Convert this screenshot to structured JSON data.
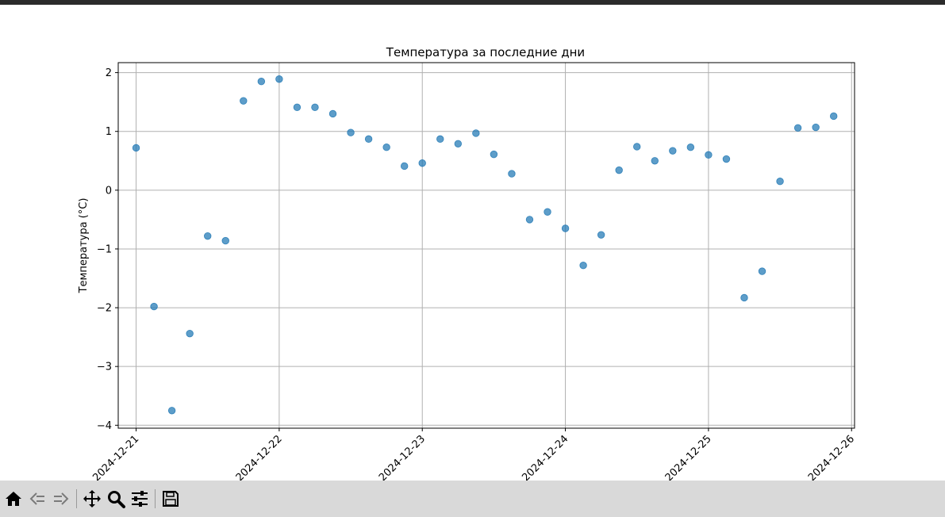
{
  "window": {
    "toolbar_icons": [
      "home-icon",
      "back-icon",
      "forward-icon",
      "pan-icon",
      "zoom-icon",
      "configure-subplots-icon",
      "save-icon"
    ]
  },
  "colors": {
    "marker": "#1f77b4",
    "grid": "#b0b0b0",
    "toolbar_bg": "#d9d9d9",
    "top_strip": "#2b2b2b"
  },
  "chart_data": {
    "type": "scatter",
    "title": "Температура за последние дни",
    "xlabel": "",
    "ylabel": "Температура (°C)",
    "x_type": "datetime",
    "xlim": [
      "2024-12-20T21:00",
      "2024-12-26T00:30"
    ],
    "ylim": [
      -4.05,
      2.17
    ],
    "xticks": [
      "2024-12-21",
      "2024-12-22",
      "2024-12-23",
      "2024-12-24",
      "2024-12-25",
      "2024-12-26"
    ],
    "yticks": [
      2,
      1,
      0,
      -1,
      -2,
      -3,
      -4
    ],
    "ytick_labels": [
      "2",
      "1",
      "0",
      "−1",
      "−2",
      "−3",
      "−4"
    ],
    "grid": true,
    "x": [
      "2024-12-21T00:00",
      "2024-12-21T03:00",
      "2024-12-21T06:00",
      "2024-12-21T09:00",
      "2024-12-21T12:00",
      "2024-12-21T15:00",
      "2024-12-21T18:00",
      "2024-12-21T21:00",
      "2024-12-22T00:00",
      "2024-12-22T03:00",
      "2024-12-22T06:00",
      "2024-12-22T09:00",
      "2024-12-22T12:00",
      "2024-12-22T15:00",
      "2024-12-22T18:00",
      "2024-12-22T21:00",
      "2024-12-23T00:00",
      "2024-12-23T03:00",
      "2024-12-23T06:00",
      "2024-12-23T09:00",
      "2024-12-23T12:00",
      "2024-12-23T15:00",
      "2024-12-23T18:00",
      "2024-12-23T21:00",
      "2024-12-24T00:00",
      "2024-12-24T03:00",
      "2024-12-24T06:00",
      "2024-12-24T09:00",
      "2024-12-24T12:00",
      "2024-12-24T15:00",
      "2024-12-24T18:00",
      "2024-12-24T21:00",
      "2024-12-25T00:00",
      "2024-12-25T03:00",
      "2024-12-25T06:00",
      "2024-12-25T09:00",
      "2024-12-25T12:00",
      "2024-12-25T15:00",
      "2024-12-25T18:00",
      "2024-12-25T21:00"
    ],
    "y": [
      0.72,
      -1.98,
      -3.75,
      -2.44,
      -0.78,
      -0.86,
      1.52,
      1.85,
      1.89,
      1.41,
      1.41,
      1.3,
      0.98,
      0.87,
      0.73,
      0.41,
      0.46,
      0.87,
      0.79,
      0.97,
      0.61,
      0.28,
      -0.5,
      -0.37,
      -0.65,
      -1.28,
      -0.76,
      0.34,
      0.74,
      0.5,
      0.67,
      0.73,
      0.6,
      0.53,
      -1.83,
      -1.38,
      0.15,
      1.06,
      1.07,
      1.26
    ]
  }
}
